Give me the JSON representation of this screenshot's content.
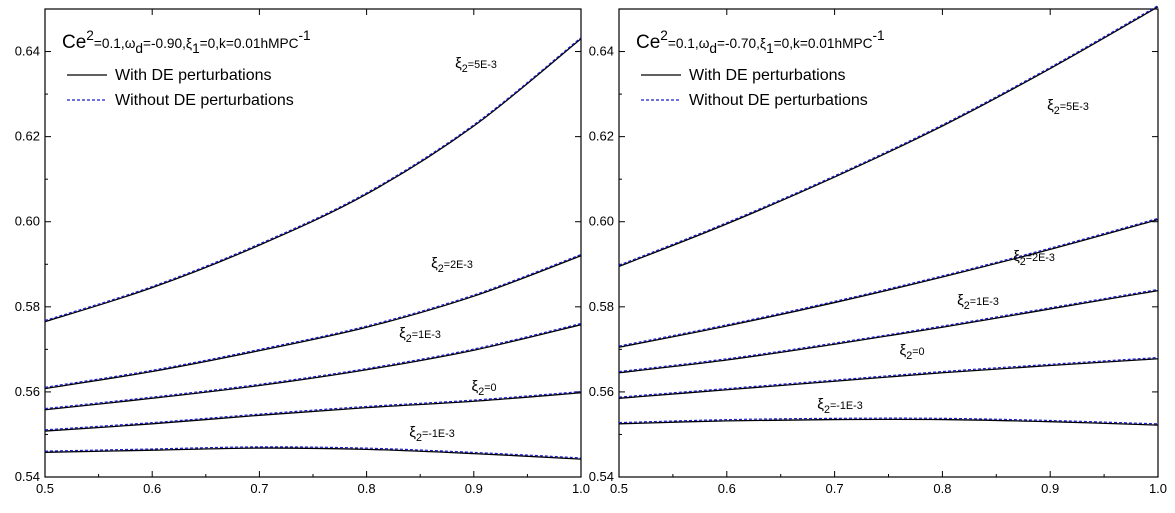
{
  "chart_data": [
    {
      "type": "line",
      "title": "Ce²=0.1,ωd=-0.90,ξ1=0,k=0.01hMPC⁻¹",
      "title_parts": [
        "Ce",
        "2",
        "=0.1,ω",
        "d",
        "=-0.90,ξ",
        "1",
        "=0,k=0.01hMPC",
        "-1"
      ],
      "xlabel": "",
      "ylabel": "",
      "xlim": [
        0.5,
        1.0
      ],
      "ylim": [
        0.54,
        0.65
      ],
      "xticks": [
        "0.5",
        "0.6",
        "0.7",
        "0.8",
        "0.9",
        "1.0"
      ],
      "yticks": [
        "0.54",
        "0.56",
        "0.58",
        "0.60",
        "0.62",
        "0.64"
      ],
      "grid": false,
      "legend": [
        "With DE perturbations",
        "Without DE perturbations"
      ],
      "legend_position": "top-left",
      "series": [
        {
          "label": [
            "ξ",
            "2",
            "=5E-3"
          ],
          "x": [
            0.5,
            0.6,
            0.7,
            0.8,
            0.9,
            1.0
          ],
          "values": [
            0.5765,
            0.5845,
            0.5945,
            0.6065,
            0.6225,
            0.643
          ]
        },
        {
          "label": [
            "ξ",
            "2",
            "=2E-3"
          ],
          "x": [
            0.5,
            0.6,
            0.7,
            0.8,
            0.9,
            1.0
          ],
          "values": [
            0.5608,
            0.5648,
            0.5697,
            0.5752,
            0.5825,
            0.592
          ]
        },
        {
          "label": [
            "ξ",
            "2",
            "=1E-3"
          ],
          "x": [
            0.5,
            0.6,
            0.7,
            0.8,
            0.9,
            1.0
          ],
          "values": [
            0.5558,
            0.5585,
            0.5615,
            0.5652,
            0.5698,
            0.5758
          ]
        },
        {
          "label": [
            "ξ",
            "2",
            "=0"
          ],
          "x": [
            0.5,
            0.6,
            0.7,
            0.8,
            0.9,
            1.0
          ],
          "values": [
            0.5508,
            0.5525,
            0.5545,
            0.5563,
            0.5578,
            0.5598
          ]
        },
        {
          "label": [
            "ξ",
            "2",
            "=-1E-3"
          ],
          "x": [
            0.5,
            0.6,
            0.7,
            0.8,
            0.9,
            1.0
          ],
          "values": [
            0.5458,
            0.5463,
            0.5468,
            0.5465,
            0.5455,
            0.5442
          ]
        }
      ]
    },
    {
      "type": "line",
      "title": "Ce²=0.1,ωd=-0.70,ξ1=0,k=0.01hMPC⁻¹",
      "title_parts": [
        "Ce",
        "2",
        "=0.1,ω",
        "d",
        "=-0.70,ξ",
        "1",
        "=0,k=0.01hMPC",
        "-1"
      ],
      "xlabel": "",
      "ylabel": "",
      "xlim": [
        0.5,
        1.0
      ],
      "ylim": [
        0.54,
        0.65
      ],
      "xticks": [
        "0.5",
        "0.6",
        "0.7",
        "0.8",
        "0.9",
        "1.0"
      ],
      "yticks": [
        "0.54",
        "0.56",
        "0.58",
        "0.60",
        "0.62",
        "0.64"
      ],
      "grid": false,
      "legend": [
        "With DE perturbations",
        "Without DE perturbations"
      ],
      "legend_position": "top-left",
      "series": [
        {
          "label": [
            "ξ",
            "2",
            "=5E-3"
          ],
          "x": [
            0.5,
            0.6,
            0.7,
            0.8,
            0.9,
            1.0
          ],
          "values": [
            0.5895,
            0.5995,
            0.6105,
            0.6225,
            0.636,
            0.6505
          ]
        },
        {
          "label": [
            "ξ",
            "2",
            "=2E-3"
          ],
          "x": [
            0.5,
            0.6,
            0.7,
            0.8,
            0.9,
            1.0
          ],
          "values": [
            0.5705,
            0.5755,
            0.581,
            0.587,
            0.5935,
            0.6005
          ]
        },
        {
          "label": [
            "ξ",
            "2",
            "=1E-3"
          ],
          "x": [
            0.5,
            0.6,
            0.7,
            0.8,
            0.9,
            1.0
          ],
          "values": [
            0.5645,
            0.5675,
            0.5712,
            0.5752,
            0.5795,
            0.5838
          ]
        },
        {
          "label": [
            "ξ",
            "2",
            "=0"
          ],
          "x": [
            0.5,
            0.6,
            0.7,
            0.8,
            0.9,
            1.0
          ],
          "values": [
            0.5585,
            0.5605,
            0.5625,
            0.5645,
            0.5662,
            0.5678
          ]
        },
        {
          "label": [
            "ξ",
            "2",
            "=-1E-3"
          ],
          "x": [
            0.5,
            0.6,
            0.7,
            0.8,
            0.9,
            1.0
          ],
          "values": [
            0.5525,
            0.5532,
            0.5535,
            0.5535,
            0.553,
            0.5522
          ]
        }
      ]
    }
  ],
  "colors": {
    "with_de": "#000000",
    "without_de": "#1a1acc",
    "axis": "#000000",
    "background": "#ffffff"
  }
}
